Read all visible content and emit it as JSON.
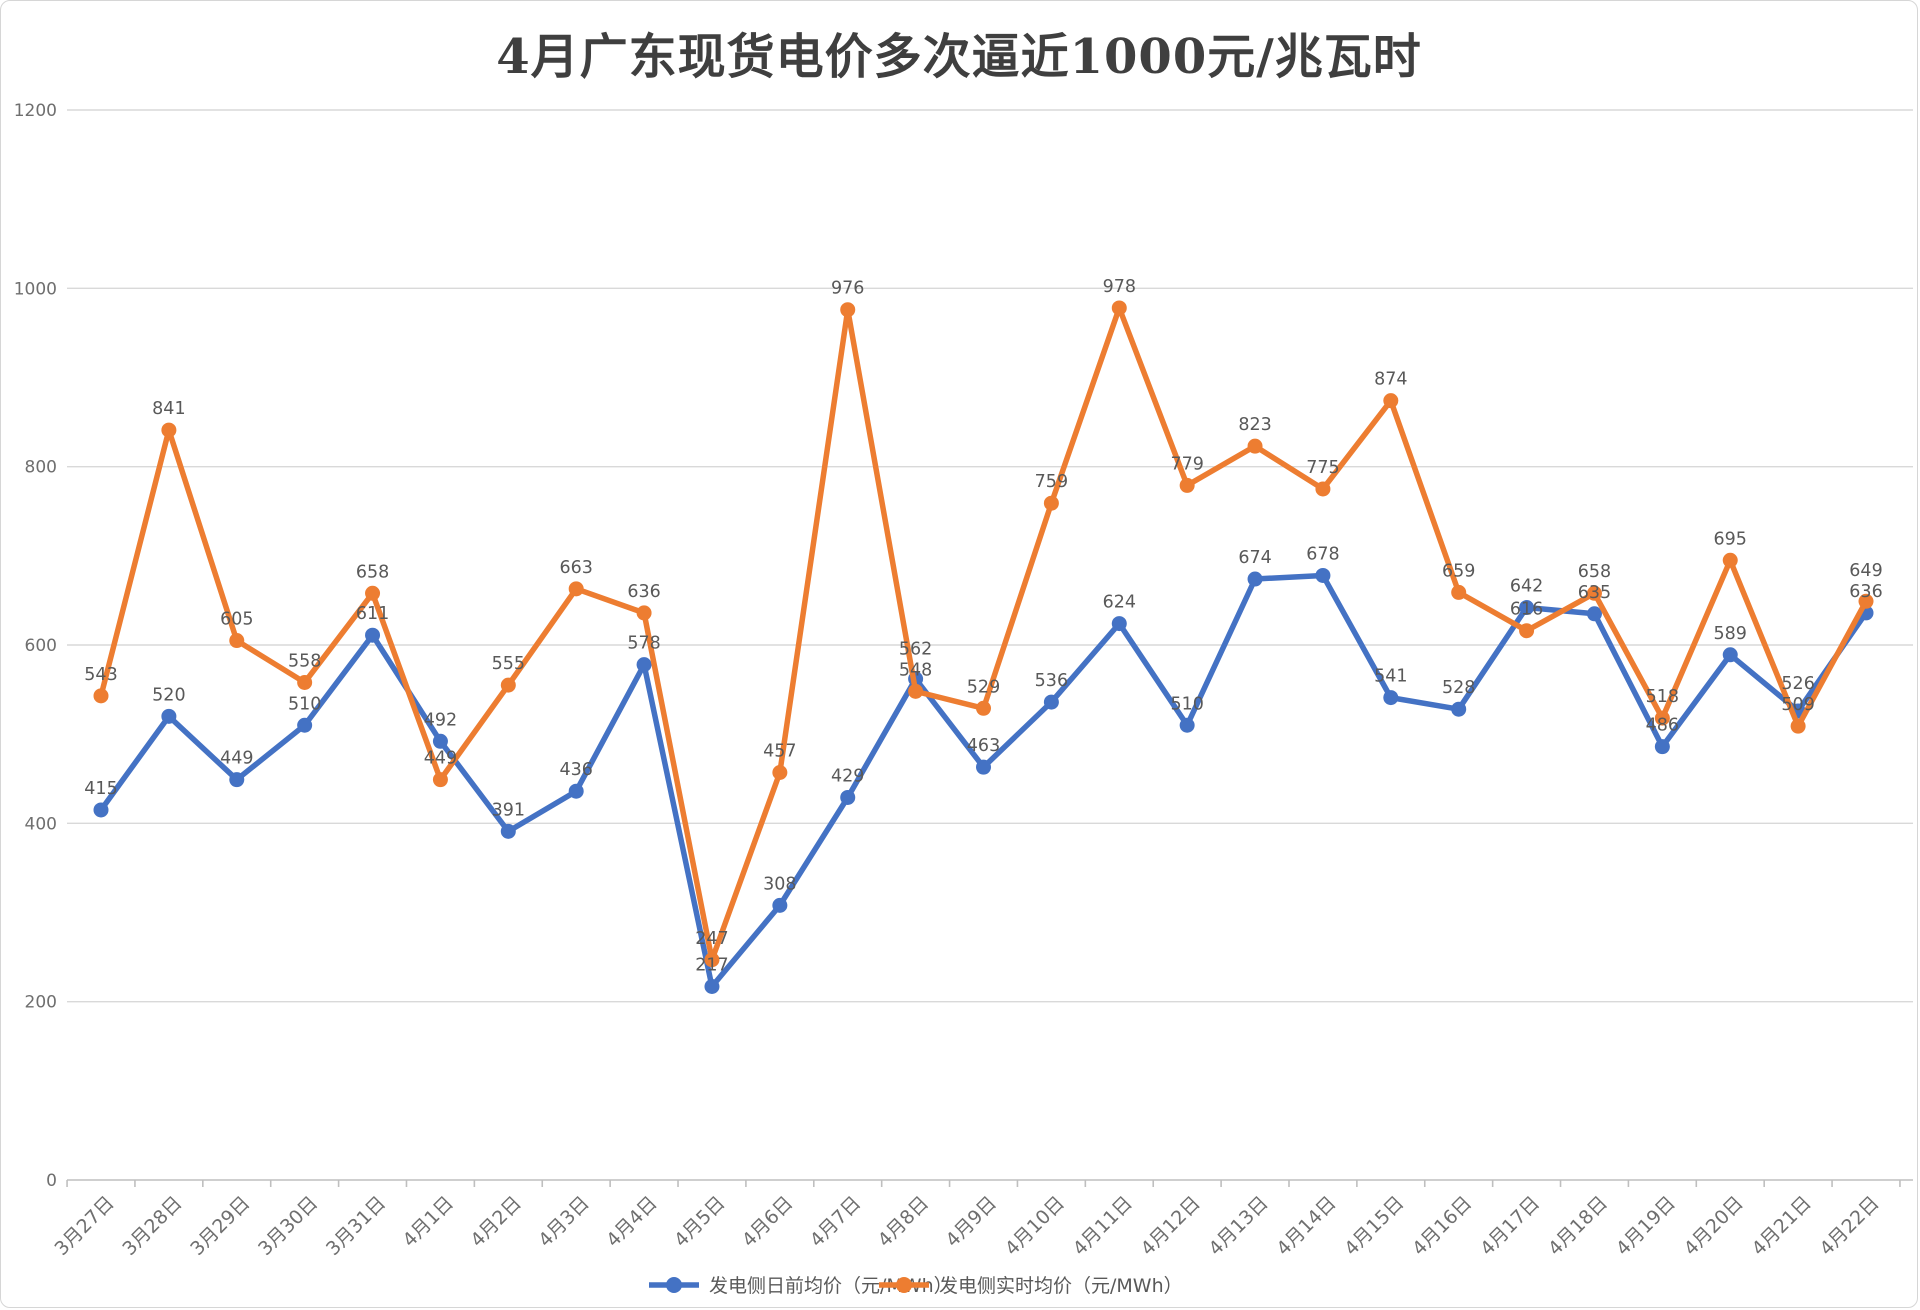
{
  "chart_data": {
    "type": "line",
    "title": "4月广东现货电价多次逼近1000元/兆瓦时",
    "xlabel": "",
    "ylabel": "",
    "ylim": [
      0,
      1200
    ],
    "yticks": [
      0,
      200,
      400,
      600,
      800,
      1000,
      1200
    ],
    "grid": "horizontal",
    "legend_position": "bottom",
    "data_labels": true,
    "categories": [
      "3月27日",
      "3月28日",
      "3月29日",
      "3月30日",
      "3月31日",
      "4月1日",
      "4月2日",
      "4月3日",
      "4月4日",
      "4月5日",
      "4月6日",
      "4月7日",
      "4月8日",
      "4月9日",
      "4月10日",
      "4月11日",
      "4月12日",
      "4月13日",
      "4月14日",
      "4月15日",
      "4月16日",
      "4月17日",
      "4月18日",
      "4月19日",
      "4月20日",
      "4月21日",
      "4月22日"
    ],
    "series": [
      {
        "name": "发电侧日前均价（元/MWh）",
        "color": "#4472C4",
        "values": [
          415,
          520,
          449,
          510,
          611,
          492,
          391,
          436,
          578,
          217,
          308,
          429,
          562,
          463,
          536,
          624,
          510,
          674,
          678,
          541,
          528,
          642,
          635,
          486,
          589,
          526,
          636
        ]
      },
      {
        "name": "发电侧实时均价（元/MWh）",
        "color": "#ED7D31",
        "values": [
          543,
          841,
          605,
          558,
          658,
          449,
          555,
          663,
          636,
          247,
          457,
          976,
          548,
          529,
          759,
          978,
          779,
          823,
          775,
          874,
          659,
          616,
          658,
          518,
          695,
          509,
          649
        ]
      }
    ],
    "colors": {
      "gridline": "#d9d9d9",
      "axis_line": "#bfbfbf",
      "axis_text": "#6f6f6f",
      "data_label_text": "#595959",
      "legend_text": "#595959",
      "title_text": "#3f3f3f"
    }
  }
}
